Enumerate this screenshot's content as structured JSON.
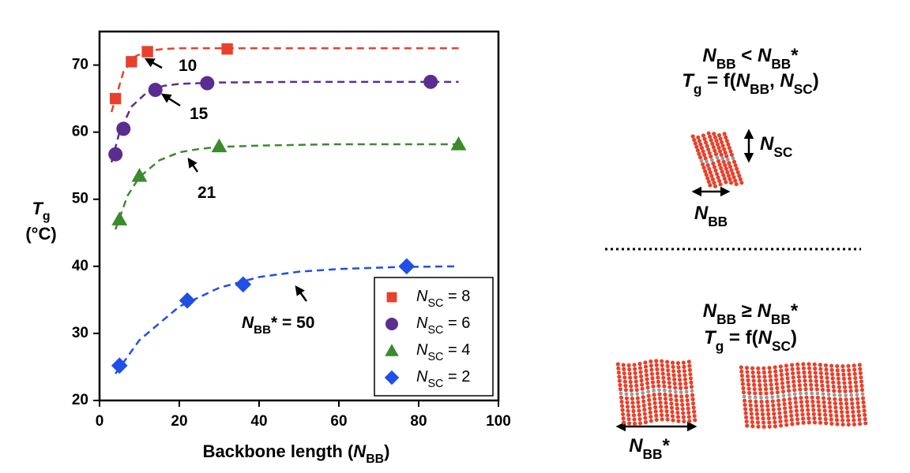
{
  "chart_data": {
    "type": "scatter",
    "xlabel": "Backbone length (NBB)",
    "ylabel": [
      "Tg",
      "(°C)"
    ],
    "xlim": [
      0,
      100
    ],
    "xticks": [
      0,
      20,
      40,
      60,
      80,
      100
    ],
    "ylim": [
      20,
      75
    ],
    "yticks": [
      20,
      30,
      40,
      50,
      60,
      70
    ],
    "series": [
      {
        "name": "NSC = 8",
        "color": "#e8412b",
        "marker": "square",
        "x": [
          4,
          8,
          12,
          32
        ],
        "values": [
          65,
          70.5,
          72,
          72.4
        ],
        "fit": {
          "x": [
            3,
            6,
            9,
            12,
            16,
            20,
            30,
            50,
            90
          ],
          "values": [
            63,
            69,
            71.3,
            72.1,
            72.4,
            72.5,
            72.5,
            72.5,
            72.5
          ]
        }
      },
      {
        "name": "NSC = 6",
        "color": "#5a2d91",
        "marker": "circle",
        "x": [
          4,
          6,
          14,
          27,
          83
        ],
        "values": [
          56.7,
          60.5,
          66.3,
          67.3,
          67.5
        ],
        "fit": {
          "x": [
            3,
            5,
            8,
            12,
            16,
            20,
            30,
            50,
            90
          ],
          "values": [
            55.5,
            60,
            63.8,
            66,
            66.9,
            67.2,
            67.4,
            67.5,
            67.5
          ]
        }
      },
      {
        "name": "NSC = 4",
        "color": "#3b8a2c",
        "marker": "triangle",
        "x": [
          5,
          10,
          30,
          90
        ],
        "values": [
          47,
          53.5,
          57.9,
          58.2
        ],
        "fit": {
          "x": [
            4,
            7,
            10,
            15,
            20,
            25,
            30,
            40,
            60,
            90
          ],
          "values": [
            45.5,
            50.5,
            53.3,
            55.8,
            57,
            57.5,
            57.8,
            58,
            58.2,
            58.2
          ]
        }
      },
      {
        "name": "NSC = 2",
        "color": "#1f4fe6",
        "marker": "diamond",
        "x": [
          5,
          22,
          36,
          77
        ],
        "values": [
          25.2,
          34.9,
          37.3,
          40
        ],
        "fit": {
          "x": [
            4,
            10,
            20,
            30,
            40,
            50,
            60,
            75,
            90
          ],
          "values": [
            24,
            29,
            34,
            36.8,
            38.4,
            39.2,
            39.6,
            39.9,
            40
          ]
        }
      }
    ],
    "annotations": [
      "10",
      "15",
      "21",
      "NBB* = 50"
    ],
    "legend": "lower right"
  },
  "diagram": {
    "top_condition": "NBB < NBB*",
    "top_relation": "Tg = f(NBB, NSC)",
    "side_chain_label": "NSC",
    "backbone_label": "NBB",
    "bottom_condition": "NBB ≥ NBB*",
    "bottom_relation": "Tg = f(NSC)",
    "critical_label": "NBB*"
  }
}
